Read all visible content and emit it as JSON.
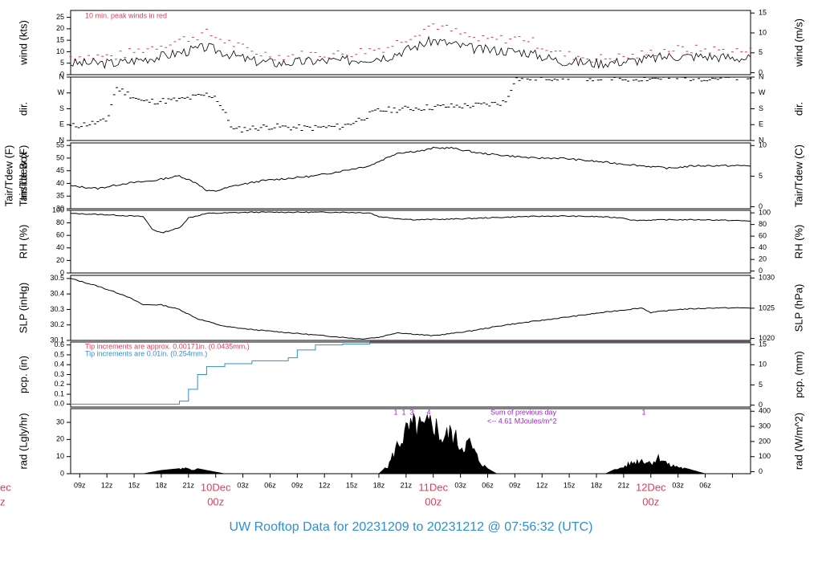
{
  "footer": {
    "title": "UW Rooftop Data for 20231209  to  20231212 @ 07:56:32  (UTC)"
  },
  "colors": {
    "accent_red": "#d8405a",
    "accent_blue": "#2f8fd0",
    "accent_purple": "#a020d0",
    "line": "#000000"
  },
  "time_axis": {
    "hour_ticks": [
      "09z",
      "12z",
      "15z",
      "18z",
      "21z",
      "03z",
      "06z",
      "09z",
      "12z",
      "15z",
      "18z",
      "21z",
      "03z",
      "06z",
      "09z",
      "12z",
      "15z",
      "18z",
      "21z",
      "03z",
      "06z"
    ],
    "day_labels": [
      {
        "day": "10Dec",
        "hour": "00z"
      },
      {
        "day": "11Dec",
        "hour": "00z"
      },
      {
        "day": "12Dec",
        "hour": "00z"
      }
    ],
    "partial_day": {
      "day": "ec",
      "hour": "z"
    }
  },
  "chart_data": [
    {
      "type": "line",
      "id": "wind",
      "ylabel_left": "wind (kts)",
      "ylabel_right": "wind (m/s)",
      "ylim": [
        0,
        28
      ],
      "yticks_left": [
        "0",
        "5",
        "10",
        "15",
        "20",
        "25"
      ],
      "yticks_right": [
        "0",
        "5",
        "10",
        "15"
      ],
      "annotation": "10 min. peak winds in red",
      "series": [
        {
          "name": "10 min. peak winds",
          "x": [
            0,
            5,
            10,
            15,
            20,
            23,
            27,
            30,
            35,
            40,
            45,
            50,
            54,
            58,
            62,
            66,
            70,
            75
          ],
          "values": [
            8,
            8,
            13,
            18,
            10,
            8,
            9,
            9,
            12,
            22,
            15,
            16,
            9,
            7,
            8,
            11,
            11,
            10
          ]
        },
        {
          "name": "wind",
          "x": [
            0,
            5,
            10,
            15,
            20,
            23,
            27,
            30,
            35,
            40,
            45,
            50,
            54,
            58,
            62,
            66,
            70,
            75
          ],
          "values": [
            5,
            5,
            8,
            12,
            6,
            5,
            6,
            6,
            8,
            15,
            11,
            10,
            6,
            5,
            6,
            8,
            8,
            7
          ]
        }
      ]
    },
    {
      "type": "scatter",
      "id": "dir",
      "ylabel_left": "dir.",
      "ylabel_right": "dir.",
      "yticks_left": [
        "N",
        "E",
        "S",
        "W",
        "N"
      ],
      "yticks_right": [
        "N",
        "E",
        "S",
        "W",
        "N"
      ],
      "values_deg_by_hour": [
        [
          0,
          80
        ],
        [
          4,
          110
        ],
        [
          5,
          300
        ],
        [
          8,
          220
        ],
        [
          12,
          230
        ],
        [
          15,
          260
        ],
        [
          16,
          250
        ],
        [
          18,
          60
        ],
        [
          22,
          80
        ],
        [
          26,
          70
        ],
        [
          30,
          80
        ],
        [
          31,
          100
        ],
        [
          34,
          170
        ],
        [
          40,
          190
        ],
        [
          45,
          200
        ],
        [
          47,
          210
        ],
        [
          48,
          220
        ],
        [
          49,
          350
        ],
        [
          55,
          360
        ],
        [
          60,
          350
        ],
        [
          66,
          355
        ],
        [
          75,
          355
        ]
      ]
    },
    {
      "type": "line",
      "id": "temp",
      "ylabel_left": "Tair/Tdew (F)",
      "ylabel_left2": "Inside Box",
      "ylabel_right": "Tair/Tdew (C)",
      "ylim": [
        30,
        56
      ],
      "yticks_left": [
        "30",
        "35",
        "40",
        "45",
        "50",
        "55"
      ],
      "yticks_right": [
        "0",
        "5",
        "10"
      ],
      "x": [
        0,
        3,
        6,
        9,
        12,
        14,
        15,
        16,
        18,
        21,
        24,
        27,
        30,
        33,
        36,
        39,
        40,
        42,
        45,
        48,
        51,
        54,
        57,
        60,
        63,
        66,
        69,
        72,
        75
      ],
      "values": [
        39,
        38,
        40,
        41,
        43,
        40,
        37,
        37,
        39,
        41,
        42,
        43,
        45,
        47,
        52,
        53,
        54,
        54,
        52,
        51,
        50,
        50,
        49,
        48,
        47,
        46,
        47,
        47,
        47
      ]
    },
    {
      "type": "line",
      "id": "rh",
      "ylabel_left": "RH (%)",
      "ylabel_right": "RH (%)",
      "ylim": [
        0,
        100
      ],
      "yticks_left": [
        "0",
        "20",
        "40",
        "60",
        "80",
        "100"
      ],
      "yticks_right": [
        "0",
        "20",
        "40",
        "60",
        "80",
        "100"
      ],
      "x": [
        0,
        4,
        8,
        9,
        10,
        12,
        13,
        15,
        20,
        25,
        30,
        33,
        34,
        36,
        38,
        42,
        46,
        50,
        54,
        58,
        61,
        62,
        66,
        70,
        75
      ],
      "values": [
        95,
        93,
        90,
        70,
        64,
        72,
        88,
        95,
        97,
        97,
        97,
        96,
        90,
        87,
        85,
        86,
        88,
        90,
        91,
        90,
        88,
        84,
        85,
        85,
        83
      ]
    },
    {
      "type": "line",
      "id": "slp",
      "ylabel_left": "SLP (inHg)",
      "ylabel_right": "SLP (hPa)",
      "ylim": [
        30.1,
        30.52
      ],
      "yticks_left": [
        "30.1",
        "30.2",
        "30.3",
        "30.4",
        "30.5"
      ],
      "yticks_right": [
        "1020",
        "1025",
        "1030"
      ],
      "x": [
        0,
        3,
        6,
        8,
        10,
        12,
        14,
        17,
        20,
        24,
        28,
        32,
        34,
        36,
        40,
        44,
        48,
        52,
        56,
        60,
        63,
        64,
        67,
        71,
        75
      ],
      "values": [
        30.5,
        30.45,
        30.39,
        30.33,
        30.33,
        30.3,
        30.24,
        30.19,
        30.17,
        30.15,
        30.13,
        30.11,
        30.12,
        30.15,
        30.13,
        30.16,
        30.2,
        30.23,
        30.26,
        30.29,
        30.31,
        30.28,
        30.3,
        30.31,
        30.31
      ]
    },
    {
      "type": "line",
      "id": "pcp",
      "ylabel_left": "pcp. (in)",
      "ylabel_right": "pcp. (mm)",
      "ylim": [
        -0.03,
        0.63
      ],
      "yticks_left": [
        "0.0",
        "0.1",
        "0.2",
        "0.3",
        "0.4",
        "0.5",
        "0.6"
      ],
      "yticks_right": [
        "0",
        "5",
        "10",
        "15"
      ],
      "annotation_red": "Tip increments are approx. 0.00171in. (0.0435mm.)",
      "annotation_blue": "Tip increments are 0.01in. (0.254mm.)",
      "x": [
        0,
        11.5,
        12,
        13,
        14,
        15,
        17,
        20,
        24,
        25,
        27,
        30,
        33,
        75
      ],
      "values": [
        0,
        0,
        0.03,
        0.15,
        0.3,
        0.38,
        0.41,
        0.44,
        0.47,
        0.55,
        0.6,
        0.61,
        0.62,
        0.62
      ]
    },
    {
      "type": "area",
      "id": "rad",
      "ylabel_left": "rad (Lgly/hr)",
      "ylabel_right": "rad (W/m^2)",
      "ylim": [
        0,
        38
      ],
      "yticks_left": [
        "0",
        "10",
        "20",
        "30"
      ],
      "yticks_right": [
        "0",
        "100",
        "200",
        "300",
        "400"
      ],
      "annotation_title": "Sum of previous day",
      "annotation_value": "<-- 4.61 MJoules/m^2",
      "day_markers": [
        "1",
        "1",
        "3",
        "4",
        "1"
      ],
      "x": [
        8,
        10,
        12,
        13,
        15,
        17,
        34,
        35,
        36,
        37,
        38,
        39,
        40,
        41,
        42,
        43,
        44,
        45,
        46,
        47,
        59,
        61,
        62,
        63,
        64,
        65,
        66,
        67,
        68,
        70
      ],
      "values": [
        0,
        2,
        3,
        4,
        2,
        0,
        0,
        5,
        20,
        30,
        35,
        32,
        38,
        25,
        30,
        20,
        22,
        10,
        3,
        0,
        0,
        5,
        8,
        10,
        8,
        12,
        6,
        5,
        3,
        0
      ]
    }
  ]
}
